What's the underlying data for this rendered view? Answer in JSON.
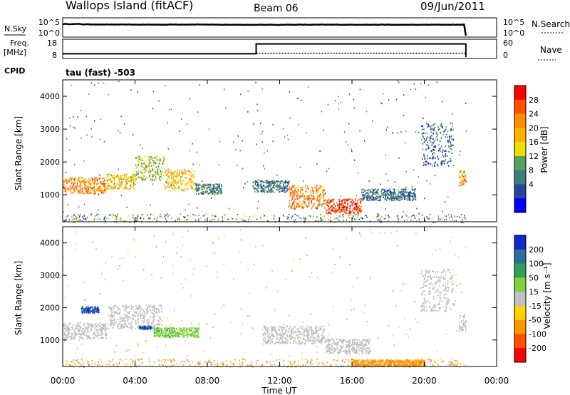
{
  "header": {
    "station": "Wallops Island (fitACF)",
    "beam": "Beam 06",
    "date": "09/Jun/2011"
  },
  "nsky_panel": {
    "left_label": "N.Sky",
    "left_ticks": [
      "10^5",
      "10^0"
    ],
    "right_label": "N.Search",
    "right_ticks": [
      "10^5",
      "10^0"
    ]
  },
  "freq_panel": {
    "left_label_line1": "Freq.",
    "left_label_line2": "[MHz]",
    "left_ticks": [
      "18",
      "8"
    ],
    "right_label": "Nave",
    "right_ticks": [
      "60",
      "0"
    ]
  },
  "cpid_panel": {
    "label": "CPID",
    "value": "tau (fast) -503"
  },
  "power_panel": {
    "ylabel": "Slant Range [km]",
    "yticks": [
      "4000",
      "3000",
      "2000",
      "1000"
    ],
    "colorbar_label": "Power [dB]",
    "colorbar_ticks": [
      "28",
      "24",
      "20",
      "16",
      "12",
      "8",
      "4"
    ],
    "colorbar_colors": [
      "#ff0000",
      "#ff5000",
      "#ff8c00",
      "#ffb400",
      "#f0dc00",
      "#5aa05a",
      "#3c7e7e",
      "#2846a0",
      "#0000ff"
    ]
  },
  "velocity_panel": {
    "ylabel": "Slant Range [km]",
    "yticks": [
      "4000",
      "3000",
      "2000",
      "1000"
    ],
    "colorbar_label": "Velocity [m s⁻¹]",
    "colorbar_ticks": [
      "200",
      "100",
      "50",
      "15",
      "-15",
      "-50",
      "-100",
      "-200"
    ],
    "colorbar_colors": [
      "#1428c8",
      "#2a6e9a",
      "#2ea05a",
      "#7ed23a",
      "#c0c0c0",
      "#ffd200",
      "#ff9600",
      "#ff5000",
      "#ff0000"
    ]
  },
  "xaxis": {
    "label": "Time UT",
    "ticks": [
      "00:00",
      "04:00",
      "08:00",
      "12:00",
      "16:00",
      "20:00",
      "00:00"
    ]
  },
  "chart_data": [
    {
      "type": "line",
      "title": "N.Sky / N.Search",
      "x_hours": [
        0,
        1,
        2,
        4,
        6,
        8,
        10,
        12,
        14,
        16,
        18,
        20,
        22,
        22.3
      ],
      "series": [
        {
          "name": "N.Sky",
          "values": [
            10000,
            12000,
            9000,
            8000,
            7500,
            8000,
            7000,
            6500,
            7000,
            7000,
            7000,
            6500,
            7000,
            7000
          ]
        }
      ],
      "ylim": [
        1,
        100000
      ],
      "yscale": "log"
    },
    {
      "type": "line",
      "title": "Freq. / Nave",
      "series": [
        {
          "name": "Freq. [MHz]",
          "segments": [
            {
              "x": [
                0,
                10.7
              ],
              "y": 10
            },
            {
              "x": [
                10.7,
                22.3
              ],
              "y": 16
            }
          ]
        },
        {
          "name": "Nave",
          "x": [
            0,
            22.3
          ],
          "y": 14
        }
      ],
      "ylim_freq": [
        8,
        18
      ],
      "ylim_nave": [
        0,
        60
      ]
    },
    {
      "type": "heatmap",
      "name": "Power [dB]",
      "xlim_hours": [
        0,
        24
      ],
      "ylim_km": [
        180,
        4500
      ],
      "zrange": [
        0,
        30
      ],
      "features": [
        {
          "from_h": 0.0,
          "to_h": 2.4,
          "range_km": [
            1050,
            1550
          ],
          "power_db": 22
        },
        {
          "from_h": 2.4,
          "to_h": 4.0,
          "range_km": [
            1200,
            1650
          ],
          "power_db": 17
        },
        {
          "from_h": 4.0,
          "to_h": 5.6,
          "range_km": [
            1450,
            2200
          ],
          "power_db": 13
        },
        {
          "from_h": 5.6,
          "to_h": 7.3,
          "range_km": [
            1150,
            1800
          ],
          "power_db": 18
        },
        {
          "from_h": 7.3,
          "to_h": 8.8,
          "range_km": [
            1050,
            1350
          ],
          "power_db": 9
        },
        {
          "from_h": 10.5,
          "to_h": 12.5,
          "range_km": [
            1100,
            1450
          ],
          "power_db": 8
        },
        {
          "from_h": 12.5,
          "to_h": 14.5,
          "range_km": [
            600,
            1300
          ],
          "power_db": 22
        },
        {
          "from_h": 14.5,
          "to_h": 16.5,
          "range_km": [
            450,
            900
          ],
          "power_db": 26
        },
        {
          "from_h": 16.5,
          "to_h": 19.5,
          "range_km": [
            850,
            1200
          ],
          "power_db": 8
        },
        {
          "from_h": 19.8,
          "to_h": 21.6,
          "range_km": [
            1900,
            3200
          ],
          "power_db": 7
        },
        {
          "from_h": 21.9,
          "to_h": 22.3,
          "range_km": [
            1300,
            1800
          ],
          "power_db": 20
        }
      ]
    },
    {
      "type": "heatmap",
      "name": "Velocity [m s⁻¹]",
      "xlim_hours": [
        0,
        24
      ],
      "ylim_km": [
        180,
        4500
      ],
      "zrange": [
        -200,
        200
      ],
      "features": [
        {
          "from_h": 0.0,
          "to_h": 2.4,
          "range_km": [
            1050,
            1550
          ],
          "velocity": 0
        },
        {
          "from_h": 1.0,
          "to_h": 2.0,
          "range_km": [
            1850,
            2050
          ],
          "velocity": 200
        },
        {
          "from_h": 2.5,
          "to_h": 5.5,
          "range_km": [
            1350,
            2100
          ],
          "velocity": 0
        },
        {
          "from_h": 4.2,
          "to_h": 4.9,
          "range_km": [
            1350,
            1450
          ],
          "velocity": 200
        },
        {
          "from_h": 5.0,
          "to_h": 7.5,
          "range_km": [
            1100,
            1400
          ],
          "velocity": 40
        },
        {
          "from_h": 11.0,
          "to_h": 14.5,
          "range_km": [
            900,
            1450
          ],
          "velocity": 0
        },
        {
          "from_h": 14.5,
          "to_h": 17.0,
          "range_km": [
            600,
            1050
          ],
          "velocity": 0
        },
        {
          "from_h": 16.0,
          "to_h": 20.0,
          "range_km": [
            200,
            400
          ],
          "velocity": -70
        },
        {
          "from_h": 19.8,
          "to_h": 21.6,
          "range_km": [
            1900,
            3200
          ],
          "velocity": 0
        },
        {
          "from_h": 21.9,
          "to_h": 22.3,
          "range_km": [
            1300,
            1800
          ],
          "velocity": 0
        }
      ]
    }
  ]
}
